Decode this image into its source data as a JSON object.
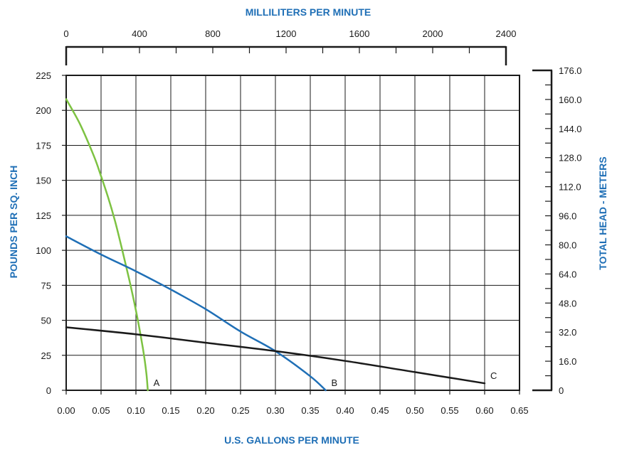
{
  "chart_data": {
    "type": "line",
    "title": "",
    "xlabel": "U.S. GALLONS PER MINUTE",
    "ylabel": "POUNDS PER SQ. INCH",
    "top_xlabel": "MILLILITERS PER MINUTE",
    "right_ylabel": "TOTAL HEAD - METERS",
    "xlim": [
      0,
      0.65
    ],
    "ylim": [
      0,
      225
    ],
    "x_ticks": [
      "0.00",
      "0.05",
      "0.10",
      "0.15",
      "0.20",
      "0.25",
      "0.30",
      "0.35",
      "0.40",
      "0.45",
      "0.50",
      "0.55",
      "0.60",
      "0.65"
    ],
    "y_ticks": [
      "0",
      "25",
      "50",
      "75",
      "100",
      "125",
      "150",
      "175",
      "200",
      "225"
    ],
    "top_x_ticks": [
      "0",
      "400",
      "800",
      "1200",
      "1600",
      "2000",
      "2400"
    ],
    "top_xlim": [
      0,
      2400
    ],
    "right_y_ticks": [
      "0",
      "16.0",
      "32.0",
      "48.0",
      "64.0",
      "80.0",
      "96.0",
      "112.0",
      "128.0",
      "144.0",
      "160.0",
      "176.0"
    ],
    "right_ylim": [
      0,
      176
    ],
    "grid": true,
    "title_color": "#1f6fb6",
    "series": [
      {
        "name": "A",
        "color": "#7dc242",
        "x": [
          0.0,
          0.02,
          0.04,
          0.05,
          0.06,
          0.07,
          0.08,
          0.09,
          0.1,
          0.11,
          0.115,
          0.117
        ],
        "y": [
          208,
          190,
          167,
          153,
          138,
          121,
          101,
          80,
          57,
          30,
          12,
          0
        ]
      },
      {
        "name": "B",
        "color": "#1f6fb6",
        "x": [
          0.0,
          0.05,
          0.1,
          0.15,
          0.2,
          0.25,
          0.3,
          0.35,
          0.372
        ],
        "y": [
          110,
          97,
          85,
          72,
          58,
          42,
          28,
          10,
          0
        ]
      },
      {
        "name": "C",
        "color": "#1a1a1a",
        "x": [
          0.0,
          0.1,
          0.2,
          0.3,
          0.4,
          0.5,
          0.6
        ],
        "y": [
          45,
          40,
          34,
          28,
          21,
          13,
          5
        ]
      }
    ]
  }
}
